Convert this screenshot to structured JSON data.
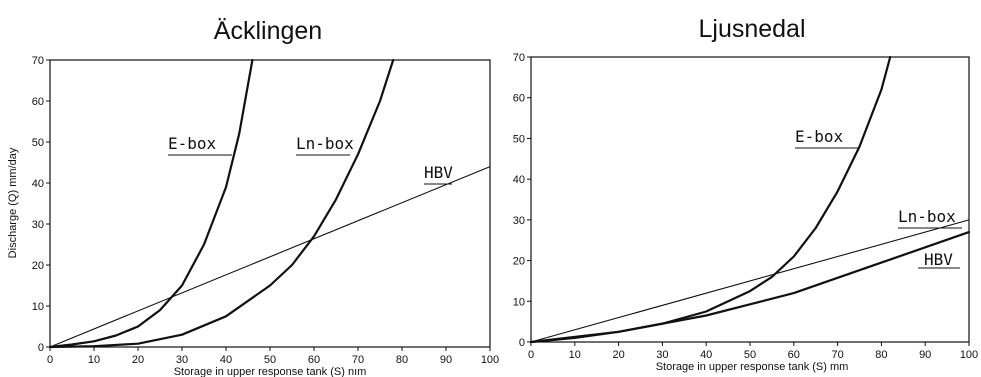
{
  "chart_data": [
    {
      "type": "line",
      "title": "Äcklingen",
      "xlabel": "Storage in upper response tank (S) nım",
      "ylabel": "Discharge (Q) mm/day",
      "xlim": [
        0,
        100
      ],
      "ylim": [
        0,
        70
      ],
      "x_ticks": [
        "0",
        "10",
        "20",
        "30",
        "40",
        "50",
        "60",
        "70",
        "80",
        "90",
        "100"
      ],
      "y_ticks": [
        "0",
        "10",
        "20",
        "30",
        "40",
        "50",
        "60",
        "70"
      ],
      "grid": false,
      "series": [
        {
          "name": "E-box",
          "points": [
            [
              0,
              0
            ],
            [
              5,
              0.6
            ],
            [
              10,
              1.4
            ],
            [
              15,
              2.8
            ],
            [
              20,
              5
            ],
            [
              25,
              9
            ],
            [
              30,
              15
            ],
            [
              35,
              25
            ],
            [
              40,
              39
            ],
            [
              43,
              52
            ],
            [
              45,
              64
            ],
            [
              46,
              70
            ]
          ],
          "thick": true
        },
        {
          "name": "Ln-box",
          "points": [
            [
              0,
              0
            ],
            [
              10,
              0.2
            ],
            [
              20,
              0.8
            ],
            [
              30,
              3
            ],
            [
              40,
              7.5
            ],
            [
              50,
              15
            ],
            [
              55,
              20
            ],
            [
              60,
              27
            ],
            [
              65,
              36
            ],
            [
              70,
              47
            ],
            [
              75,
              60
            ],
            [
              78,
              70
            ]
          ],
          "thick": true
        },
        {
          "name": "HBV",
          "points": [
            [
              0,
              0
            ],
            [
              100,
              44
            ]
          ],
          "thick": false
        }
      ]
    },
    {
      "type": "line",
      "title": "Ljusnedal",
      "xlabel": "Storage in upper response tank (S) mm",
      "ylabel": "",
      "xlim": [
        0,
        100
      ],
      "ylim": [
        0,
        70
      ],
      "x_ticks": [
        "0",
        "10",
        "20",
        "30",
        "40",
        "50",
        "60",
        "70",
        "80",
        "90",
        "100"
      ],
      "y_ticks": [
        "0",
        "10",
        "20",
        "30",
        "40",
        "50",
        "60",
        "70"
      ],
      "grid": false,
      "series": [
        {
          "name": "E-box",
          "points": [
            [
              0,
              0
            ],
            [
              10,
              1
            ],
            [
              20,
              2.5
            ],
            [
              30,
              4.5
            ],
            [
              40,
              7.5
            ],
            [
              50,
              12.5
            ],
            [
              55,
              16
            ],
            [
              60,
              21
            ],
            [
              65,
              28
            ],
            [
              70,
              37
            ],
            [
              75,
              48
            ],
            [
              80,
              62
            ],
            [
              82,
              70
            ]
          ],
          "thick": true
        },
        {
          "name": "Ln-box",
          "points": [
            [
              0,
              0
            ],
            [
              100,
              30
            ]
          ],
          "thick": false
        },
        {
          "name": "HBV",
          "points": [
            [
              0,
              0
            ],
            [
              20,
              2.5
            ],
            [
              40,
              6.5
            ],
            [
              60,
              12
            ],
            [
              80,
              19.5
            ],
            [
              100,
              27
            ]
          ],
          "thick": true
        }
      ]
    }
  ]
}
